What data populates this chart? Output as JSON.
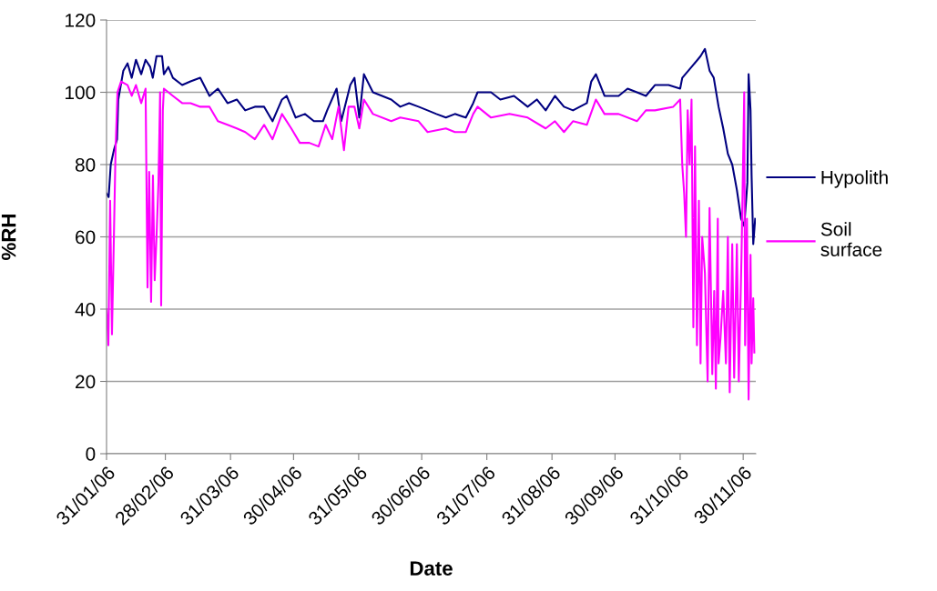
{
  "chart_data": {
    "type": "line",
    "xlabel": "Date",
    "ylabel": "%RH",
    "xlim": [
      "2006-01-31",
      "2006-12-06"
    ],
    "ylim": [
      0,
      120
    ],
    "yticks": [
      0,
      20,
      40,
      60,
      80,
      100,
      120
    ],
    "xticks": [
      {
        "value": "2006-01-31",
        "label": "31/01/06"
      },
      {
        "value": "2006-02-28",
        "label": "28/02/06"
      },
      {
        "value": "2006-03-31",
        "label": "31/03/06"
      },
      {
        "value": "2006-04-30",
        "label": "30/04/06"
      },
      {
        "value": "2006-05-31",
        "label": "31/05/06"
      },
      {
        "value": "2006-06-30",
        "label": "30/06/06"
      },
      {
        "value": "2006-07-31",
        "label": "31/07/06"
      },
      {
        "value": "2006-08-31",
        "label": "31/08/06"
      },
      {
        "value": "2006-09-30",
        "label": "30/09/06"
      },
      {
        "value": "2006-10-31",
        "label": "31/10/06"
      },
      {
        "value": "2006-11-30",
        "label": "30/11/06"
      }
    ],
    "grid": "y",
    "legend": "right",
    "marker": "none",
    "line_style": "solid",
    "series": [
      {
        "name": "Hypolith",
        "color": "#000080",
        "x": [
          "2006-01-31",
          "2006-02-01",
          "2006-02-02",
          "2006-02-03T12:00",
          "2006-02-05",
          "2006-02-05T14:00",
          "2006-02-08",
          "2006-02-10",
          "2006-02-12",
          "2006-02-14",
          "2006-02-16T12:00",
          "2006-02-18T14:00",
          "2006-02-20T19:00",
          "2006-02-22",
          "2006-02-23T19:00",
          "2006-02-26T10:00",
          "2006-02-27T07:00",
          "2006-03-01T10:00",
          "2006-03-03T14:00",
          "2006-03-08",
          "2006-03-12",
          "2006-03-16T14:00",
          "2006-03-21",
          "2006-03-25",
          "2006-03-29T14:00",
          "2006-04-03",
          "2006-04-07",
          "2006-04-11T14:00",
          "2006-04-16",
          "2006-04-20",
          "2006-04-24T12:00",
          "2006-04-26T17:00",
          "2006-05-01",
          "2006-05-05T10:00",
          "2006-05-09T17:00",
          "2006-05-14",
          "2006-05-16",
          "2006-05-20T12:00",
          "2006-05-22T17:00",
          "2006-05-27",
          "2006-05-29",
          "2006-05-31T07:00",
          "2006-06-02T12:00",
          "2006-06-06T19:00",
          "2006-06-15T12:00",
          "2006-06-19T19:00",
          "2006-06-24",
          "2006-06-28T12:00",
          "2006-07-02T19:00",
          "2006-07-07",
          "2006-07-11T12:00",
          "2006-07-15T19:00",
          "2006-07-21",
          "2006-07-24T12:00",
          "2006-07-26T14:00",
          "2006-08-02",
          "2006-08-06T10:00",
          "2006-08-12T22:00",
          "2006-08-19T10:00",
          "2006-08-23T19:00",
          "2006-08-28",
          "2006-09-01T10:00",
          "2006-09-05T17:00",
          "2006-09-10",
          "2006-09-16T14:00",
          "2006-09-18T17:00",
          "2006-09-20T22:00",
          "2006-09-25",
          "2006-10-01T17:00",
          "2006-10-06",
          "2006-10-10T10:00",
          "2006-10-14T17:00",
          "2006-10-19",
          "2006-10-25T12:00",
          "2006-10-31",
          "2006-11-01",
          "2006-11-05T10:00",
          "2006-11-09T17:00",
          "2006-11-11T19:00",
          "2006-11-14",
          "2006-11-16",
          "2006-11-18T07:00",
          "2006-11-20T12:00",
          "2006-11-22T17:00",
          "2006-11-24T19:00",
          "2006-11-27",
          "2006-11-29",
          "2006-11-30T12:00",
          "2006-12-02",
          "2006-12-02T14:00",
          "2006-12-03T12:00",
          "2006-12-04",
          "2006-12-04T19:00",
          "2006-12-05T17:00"
        ],
        "values": [
          72,
          71,
          80,
          84,
          87,
          98,
          106,
          108,
          104,
          109,
          105,
          109,
          107,
          104,
          110,
          110,
          105,
          107,
          104,
          102,
          103,
          104,
          99,
          101,
          97,
          98,
          95,
          96,
          96,
          92,
          98,
          99,
          93,
          94,
          92,
          92,
          95,
          101,
          92,
          102,
          104,
          93,
          105,
          100,
          98,
          96,
          97,
          96,
          95,
          94,
          93,
          94,
          93,
          97,
          100,
          100,
          98,
          99,
          96,
          98,
          95,
          99,
          96,
          95,
          97,
          103,
          105,
          99,
          99,
          101,
          100,
          99,
          102,
          102,
          101,
          104,
          107,
          110,
          112,
          106,
          104,
          96,
          90,
          83,
          80,
          73,
          65,
          63,
          75,
          105,
          95,
          77,
          58,
          65
        ]
      },
      {
        "name": "Soil surface",
        "color": "#ff00ff",
        "x": [
          "2006-01-31",
          "2006-01-31T21:00",
          "2006-02-01T17:00",
          "2006-02-02T14:00",
          "2006-02-03T12:00",
          "2006-02-04T07:00",
          "2006-02-05T05:00",
          "2006-02-06T22:00",
          "2006-02-10",
          "2006-02-12",
          "2006-02-14",
          "2006-02-16T12:00",
          "2006-02-18T14:00",
          "2006-02-19T12:00",
          "2006-02-20T07:00",
          "2006-02-21T05:00",
          "2006-02-22T02:00",
          "2006-02-22T22:00",
          "2006-02-23T19:00",
          "2006-02-24T17:00",
          "2006-02-25T12:00",
          "2006-02-26",
          "2006-02-26T19:00",
          "2006-02-27T07:00",
          "2006-03-03T14:00",
          "2006-03-08",
          "2006-03-12",
          "2006-03-16T14:00",
          "2006-03-21",
          "2006-03-25",
          "2006-03-29T14:00",
          "2006-04-03",
          "2006-04-07",
          "2006-04-11T14:00",
          "2006-04-16",
          "2006-04-20",
          "2006-04-24T12:00",
          "2006-04-28T22:00",
          "2006-05-03",
          "2006-05-07T12:00",
          "2006-05-11T22:00",
          "2006-05-15T07:00",
          "2006-05-18T10:00",
          "2006-05-21T10:00",
          "2006-05-24",
          "2006-05-26T05:00",
          "2006-05-29",
          "2006-05-31T07:00",
          "2006-06-02T12:00",
          "2006-06-06T19:00",
          "2006-06-15T12:00",
          "2006-06-19T19:00",
          "2006-06-28T12:00",
          "2006-07-02T19:00",
          "2006-07-11T12:00",
          "2006-07-15T19:00",
          "2006-07-21",
          "2006-07-24T12:00",
          "2006-07-26T14:00",
          "2006-08-02",
          "2006-08-10T19:00",
          "2006-08-19T10:00",
          "2006-08-28",
          "2006-09-01T10:00",
          "2006-09-05T17:00",
          "2006-09-10",
          "2006-09-16T14:00",
          "2006-09-20T22:00",
          "2006-09-25",
          "2006-10-01T17:00",
          "2006-10-10T10:00",
          "2006-10-14T17:00",
          "2006-10-19",
          "2006-10-27T17:00",
          "2006-10-31",
          "2006-11-01",
          "2006-11-01T22:00",
          "2006-11-02T19:00",
          "2006-11-03T14:00",
          "2006-11-04T12:00",
          "2006-11-05T10:00",
          "2006-11-06T07:00",
          "2006-11-07T02:00",
          "2006-11-08",
          "2006-11-08T22:00",
          "2006-11-09T17:00",
          "2006-11-10T12:00",
          "2006-11-11T19:00",
          "2006-11-13T02:00",
          "2006-11-14",
          "2006-11-15T07:00",
          "2006-11-16T05:00",
          "2006-11-17",
          "2006-11-17T22:00",
          "2006-11-18T07:00",
          "2006-11-19T05:00",
          "2006-11-20T12:00",
          "2006-11-21T19:00",
          "2006-11-22T17:00",
          "2006-11-23T14:00",
          "2006-11-24T19:00",
          "2006-11-25T17:00",
          "2006-11-27",
          "2006-11-27T22:00",
          "2006-11-29T05:00",
          "2006-11-30T12:00",
          "2006-11-30T22:00",
          "2006-12-01T19:00",
          "2006-12-02T14:00",
          "2006-12-03T12:00",
          "2006-12-04",
          "2006-12-04T19:00",
          "2006-12-05T07:00"
        ],
        "values": [
          40,
          30,
          70,
          33,
          60,
          84,
          100,
          103,
          102,
          99,
          102,
          97,
          101,
          46,
          78,
          42,
          77,
          48,
          60,
          75,
          100,
          41,
          95,
          101,
          99,
          97,
          97,
          96,
          96,
          92,
          91,
          90,
          89,
          87,
          91,
          87,
          94,
          90,
          86,
          86,
          85,
          91,
          87,
          96,
          84,
          96,
          96,
          90,
          98,
          94,
          92,
          93,
          92,
          89,
          90,
          89,
          89,
          94,
          96,
          93,
          94,
          93,
          90,
          92,
          89,
          92,
          91,
          98,
          94,
          94,
          92,
          95,
          95,
          96,
          98,
          80,
          72,
          60,
          95,
          80,
          98,
          35,
          85,
          30,
          70,
          25,
          60,
          50,
          20,
          68,
          22,
          45,
          18,
          65,
          25,
          32,
          45,
          25,
          60,
          17,
          58,
          21,
          58,
          20,
          55,
          100,
          30,
          65,
          15,
          55,
          25,
          43,
          28
        ]
      }
    ]
  }
}
